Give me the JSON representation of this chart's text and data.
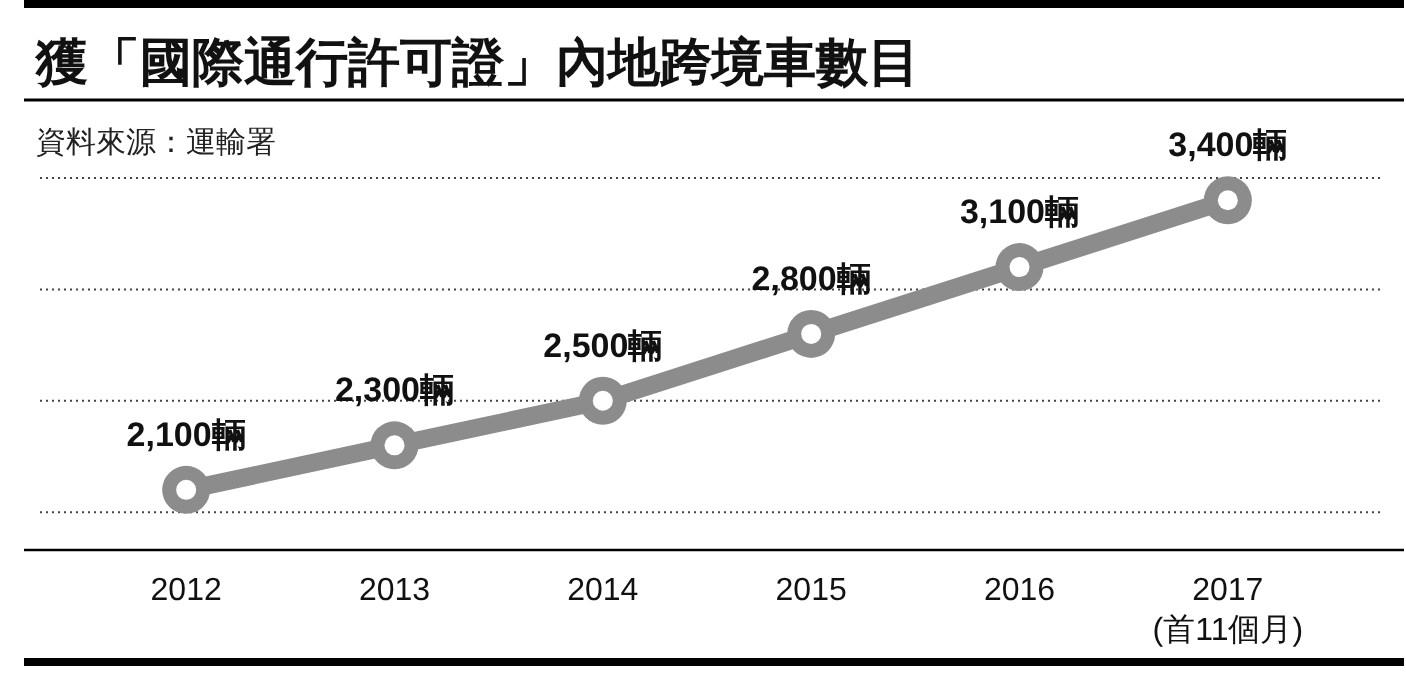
{
  "chart_data": {
    "type": "line",
    "title": "獲「國際通行許可證」內地跨境車數目",
    "annotations": [
      "資料來源：運輸署"
    ],
    "categories": [
      "2012",
      "2013",
      "2014",
      "2015",
      "2016",
      "2017\n(首11個月)"
    ],
    "series": [
      {
        "color": "#8c8c8c",
        "values": [
          2100,
          2300,
          2500,
          2800,
          3100,
          3400
        ],
        "value_labels": [
          "2,100輛",
          "2,300輛",
          "2,500輛",
          "2,800輛",
          "3,100輛",
          "3,400輛"
        ]
      }
    ],
    "ylim": [
      1830,
      3500
    ],
    "yticks": [
      {
        "value": 2000,
        "label": null
      },
      {
        "value": 2500,
        "label": null
      },
      {
        "value": 3000,
        "label": null
      },
      {
        "value": 3500,
        "label": null
      }
    ],
    "grid": "y",
    "marker": "circle",
    "line_style": "solid",
    "tick_labels": "x"
  }
}
